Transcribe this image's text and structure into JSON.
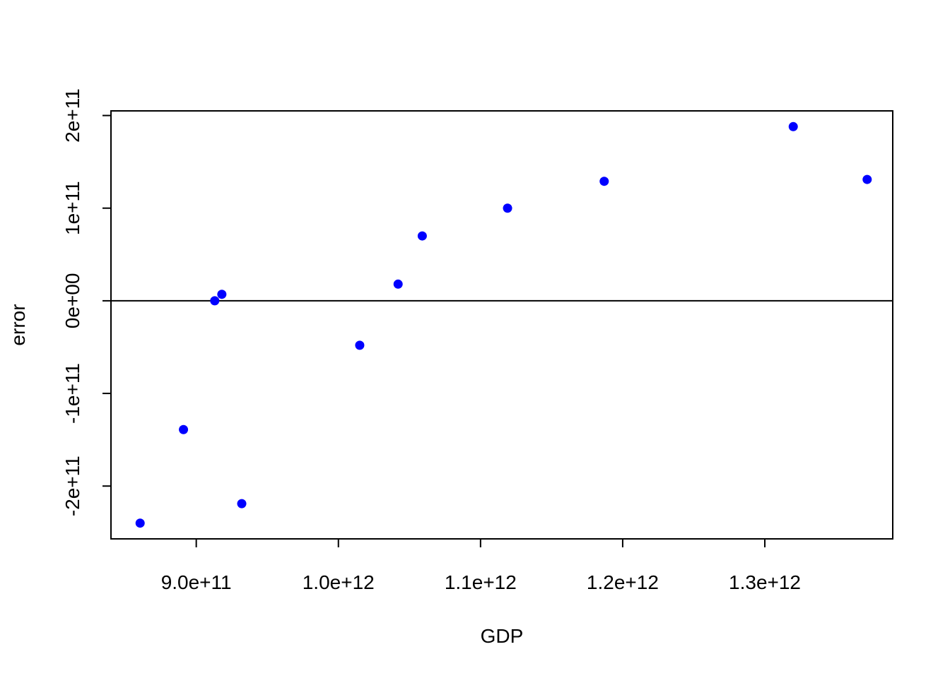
{
  "chart_data": {
    "type": "scatter",
    "title": "",
    "xlabel": "GDP",
    "ylabel": "error",
    "xlim": [
      840000000000,
      1390000000000
    ],
    "ylim": [
      -257000000000,
      205000000000
    ],
    "x_ticks": [
      {
        "value": 900000000000,
        "label": "9.0e+11"
      },
      {
        "value": 1000000000000,
        "label": "1.0e+12"
      },
      {
        "value": 1100000000000,
        "label": "1.1e+12"
      },
      {
        "value": 1200000000000,
        "label": "1.2e+12"
      },
      {
        "value": 1300000000000,
        "label": "1.3e+12"
      }
    ],
    "y_ticks": [
      {
        "value": -200000000000,
        "label": "-2e+11"
      },
      {
        "value": -100000000000,
        "label": "-1e+11"
      },
      {
        "value": 0,
        "label": "0e+00"
      },
      {
        "value": 100000000000,
        "label": "1e+11"
      },
      {
        "value": 200000000000,
        "label": "2e+11"
      }
    ],
    "reference_line_y": 0,
    "grid": false,
    "point_color": "#0000FF",
    "points": [
      {
        "x": 860500000000,
        "y": -240000000000
      },
      {
        "x": 891000000000,
        "y": -139000000000
      },
      {
        "x": 913000000000,
        "y": 0
      },
      {
        "x": 918000000000,
        "y": 7000000000
      },
      {
        "x": 932000000000,
        "y": -219000000000
      },
      {
        "x": 1015000000000,
        "y": -48000000000
      },
      {
        "x": 1042000000000,
        "y": 18000000000
      },
      {
        "x": 1059000000000,
        "y": 70000000000
      },
      {
        "x": 1119000000000,
        "y": 100000000000
      },
      {
        "x": 1187000000000,
        "y": 129000000000
      },
      {
        "x": 1320000000000,
        "y": 188000000000
      },
      {
        "x": 1372000000000,
        "y": 131000000000
      }
    ]
  }
}
